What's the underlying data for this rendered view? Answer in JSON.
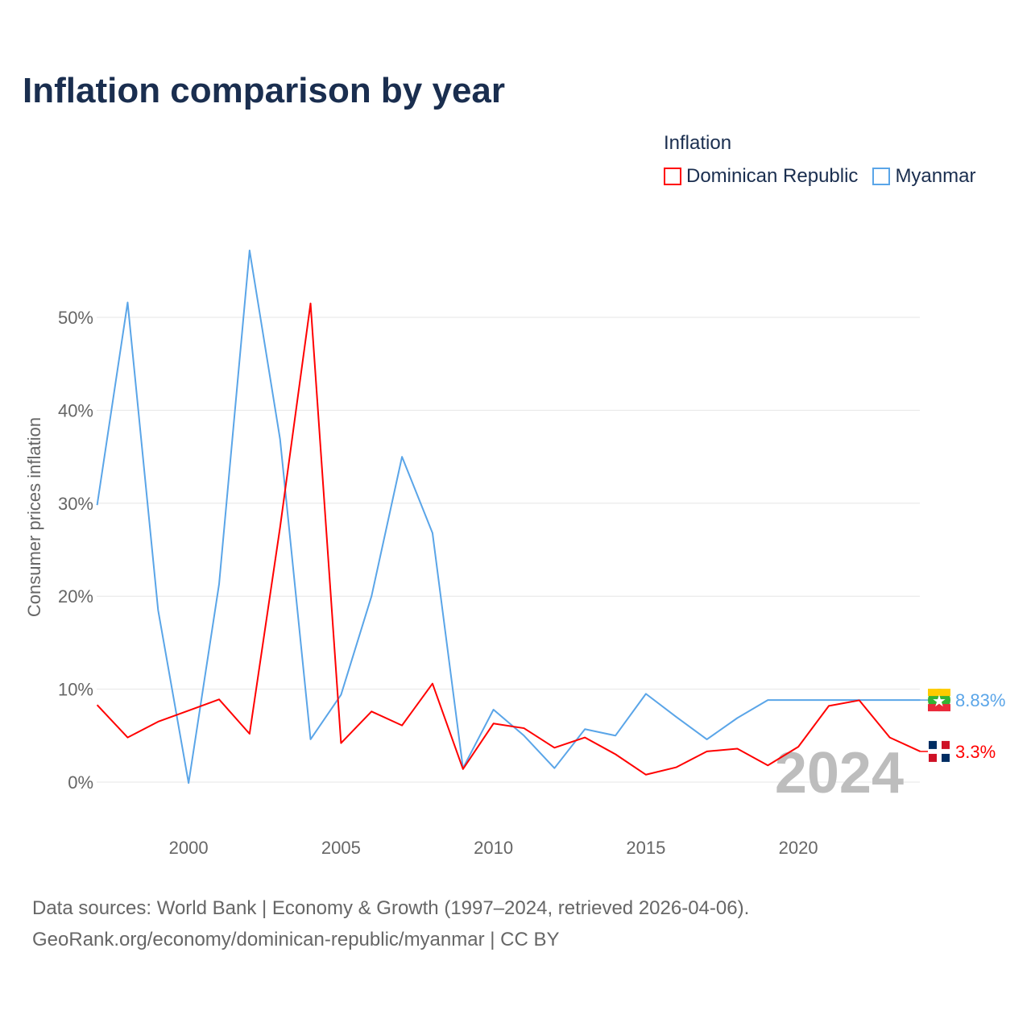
{
  "chart_data": {
    "type": "line",
    "title": "Inflation comparison by year",
    "legend_title": "Inflation",
    "legend_position": "top-right",
    "ylabel": "Consumer prices inflation",
    "xlabel": "",
    "xlim": [
      1997,
      2024
    ],
    "ylim": [
      -5,
      60
    ],
    "grid": true,
    "x_ticks": [
      2000,
      2005,
      2010,
      2015,
      2020
    ],
    "x_tick_labels": [
      "2000",
      "2005",
      "2010",
      "2015",
      "2020"
    ],
    "y_ticks": [
      0,
      10,
      20,
      30,
      40,
      50
    ],
    "y_tick_labels": [
      "0%",
      "10%",
      "20%",
      "30%",
      "40%",
      "50%"
    ],
    "x": [
      1997,
      1998,
      1999,
      2000,
      2001,
      2002,
      2003,
      2004,
      2005,
      2006,
      2007,
      2008,
      2009,
      2010,
      2011,
      2012,
      2013,
      2014,
      2015,
      2016,
      2017,
      2018,
      2019,
      2020,
      2021,
      2022,
      2023,
      2024
    ],
    "series": [
      {
        "name": "Dominican Republic",
        "color": "#ff0000",
        "end_label": "3.3%",
        "values": [
          8.3,
          4.8,
          6.5,
          7.7,
          8.9,
          5.2,
          27.4,
          51.5,
          4.2,
          7.6,
          6.1,
          10.6,
          1.4,
          6.3,
          5.8,
          3.7,
          4.8,
          3.0,
          0.8,
          1.6,
          3.3,
          3.6,
          1.8,
          3.8,
          8.2,
          8.8,
          4.8,
          3.3
        ]
      },
      {
        "name": "Myanmar",
        "color": "#5aa5e8",
        "end_label": "8.83%",
        "values": [
          29.8,
          51.6,
          18.5,
          -0.1,
          21.3,
          57.2,
          36.9,
          4.6,
          9.4,
          20.0,
          35.0,
          26.8,
          1.5,
          7.8,
          5.0,
          1.5,
          5.7,
          5.0,
          9.5,
          7.0,
          4.6,
          6.9,
          8.83,
          8.83,
          8.83,
          8.83,
          8.83,
          8.83
        ]
      }
    ],
    "year_watermark": "2024"
  },
  "footer": {
    "line1": "Data sources: World Bank | Economy & Growth (1997–2024, retrieved 2026-04-06).",
    "line2": "GeoRank.org/economy/dominican-republic/myanmar | CC BY"
  }
}
